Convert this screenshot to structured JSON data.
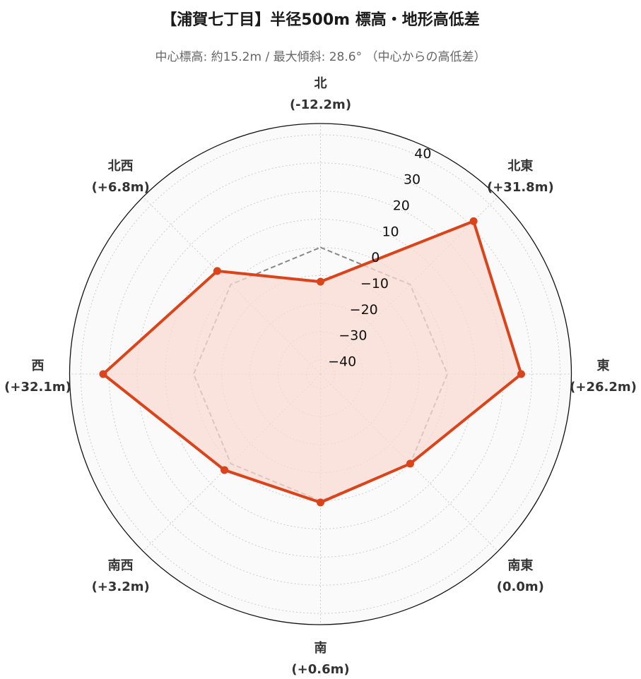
{
  "title": "【浦賀七丁目】半径500m 標高・地形高低差",
  "subtitle": "中心標高: 約15.2m / 最大傾斜: 28.6° （中心からの高低差）",
  "colors": {
    "series": "#d9441a",
    "fill": "#fadbd2",
    "reference": "#888888",
    "background": "#fafafa",
    "grid": "#cccccc"
  },
  "chart_data": {
    "type": "radar",
    "categories": [
      "北",
      "北東",
      "東",
      "南東",
      "南",
      "南西",
      "西",
      "北西"
    ],
    "category_labels": [
      "(-12.2m)",
      "(+31.8m)",
      "(+26.2m)",
      "(0.0m)",
      "(+0.6m)",
      "(+3.2m)",
      "(+32.1m)",
      "(+6.8m)"
    ],
    "series": [
      {
        "values": [
          -12.2,
          31.8,
          26.2,
          0.0,
          0.6,
          3.2,
          32.1,
          6.8
        ],
        "style": "solid",
        "filled": true
      },
      {
        "values": [
          0,
          0,
          0,
          0,
          0,
          0,
          0,
          0
        ],
        "style": "dashed",
        "filled": false
      }
    ],
    "rlim": [
      -45,
      44
    ],
    "rticks": [
      -40,
      -30,
      -20,
      -10,
      0,
      10,
      20,
      30,
      40
    ],
    "rtick_labels": [
      "−40",
      "−30",
      "−20",
      "−10",
      "0",
      "10",
      "20",
      "30",
      "40"
    ],
    "grid": true
  }
}
